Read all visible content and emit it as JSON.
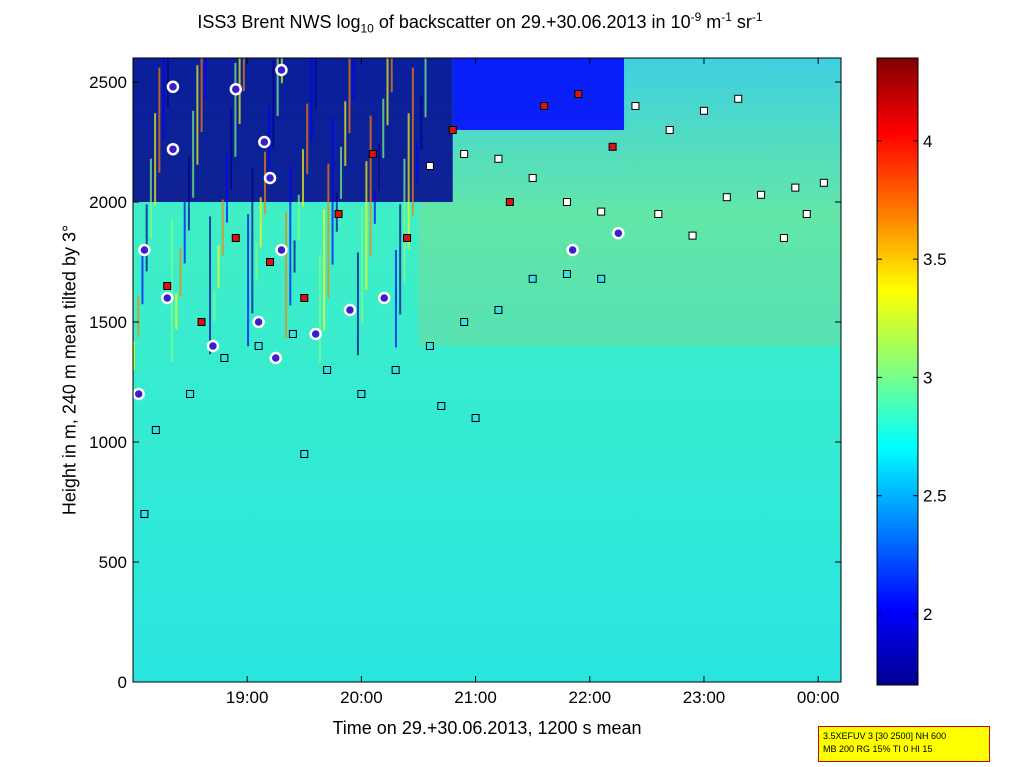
{
  "title": {
    "main": "ISS3 Brent NWS log",
    "sub1": "10",
    "mid": " of backscatter on 29.+30.06.2013 in 10",
    "sup1": "-9",
    "mid2": " m",
    "sup2": "-1",
    "mid3": " sr",
    "sup3": "-1"
  },
  "info_box": {
    "line1": "3.5XEFUV 3 [30 2500] NH 600",
    "line2": "MB 200 RG 15% TI 0 HI 15"
  },
  "colors": {
    "colormap": [
      "#00008f",
      "#0000ff",
      "#0080ff",
      "#00ffff",
      "#80ff80",
      "#ffff00",
      "#ff8000",
      "#ff0000",
      "#800000"
    ],
    "background_field": "#3fd6c8",
    "marker_red": "#dd1111",
    "marker_white": "#ffffff",
    "marker_cyan": "#38e0e8",
    "marker_purple": "#3a1ecc"
  },
  "chart_data": {
    "type": "heatmap",
    "title": "ISS3 Brent NWS log10 of backscatter on 29.+30.06.2013 in 10^-9 m^-1 sr^-1",
    "xlabel": "Time on 29.+30.06.2013, 1200 s mean",
    "ylabel": "Height in m, 240 m mean tilted by 3°",
    "x_unit": "hours",
    "xlim": [
      18.0,
      24.2
    ],
    "x_ticks": [
      {
        "value": 19,
        "label": "19:00"
      },
      {
        "value": 20,
        "label": "20:00"
      },
      {
        "value": 21,
        "label": "21:00"
      },
      {
        "value": 22,
        "label": "22:00"
      },
      {
        "value": 23,
        "label": "23:00"
      },
      {
        "value": 24,
        "label": "00:00"
      }
    ],
    "ylim": [
      0,
      2600
    ],
    "y_ticks": [
      0,
      500,
      1000,
      1500,
      2000,
      2500
    ],
    "colorbar": {
      "range": [
        1.7,
        4.35
      ],
      "ticks": [
        2,
        2.5,
        3,
        3.5,
        4
      ],
      "tick_labels": [
        "2",
        "2.5",
        "3",
        "3.5",
        "4"
      ]
    },
    "grid": false,
    "field_regions": [
      {
        "x": [
          18.0,
          20.8
        ],
        "y": [
          2000,
          2600
        ],
        "level": 1.85
      },
      {
        "x": [
          20.8,
          22.3
        ],
        "y": [
          2300,
          2600
        ],
        "level": 1.9
      },
      {
        "x": [
          18.0,
          20.5
        ],
        "y": [
          1400,
          2000
        ],
        "level": 2.6
      },
      {
        "x": [
          18.0,
          24.2
        ],
        "y": [
          0,
          1400
        ],
        "level": 2.75
      }
    ],
    "layer_series": [
      {
        "marker": "square-white",
        "points": [
          [
            20.6,
            2150
          ],
          [
            20.9,
            2200
          ],
          [
            21.2,
            2180
          ],
          [
            21.5,
            2100
          ],
          [
            21.8,
            2000
          ],
          [
            22.1,
            1960
          ],
          [
            22.4,
            2400
          ],
          [
            22.7,
            2300
          ],
          [
            23.0,
            2380
          ],
          [
            23.3,
            2430
          ],
          [
            22.6,
            1950
          ],
          [
            22.9,
            1860
          ],
          [
            23.2,
            2020
          ],
          [
            23.5,
            2030
          ],
          [
            23.8,
            2060
          ],
          [
            24.05,
            2080
          ],
          [
            23.9,
            1950
          ],
          [
            23.7,
            1850
          ]
        ]
      },
      {
        "marker": "square-cyan",
        "points": [
          [
            18.2,
            1050
          ],
          [
            18.5,
            1200
          ],
          [
            18.8,
            1350
          ],
          [
            19.1,
            1400
          ],
          [
            19.4,
            1450
          ],
          [
            19.7,
            1300
          ],
          [
            20.0,
            1200
          ],
          [
            20.3,
            1300
          ],
          [
            20.6,
            1400
          ],
          [
            20.9,
            1500
          ],
          [
            21.2,
            1550
          ],
          [
            21.5,
            1680
          ],
          [
            21.8,
            1700
          ],
          [
            22.1,
            1680
          ],
          [
            21.0,
            1100
          ],
          [
            20.7,
            1150
          ],
          [
            18.1,
            700
          ],
          [
            19.5,
            950
          ]
        ]
      },
      {
        "marker": "square-red",
        "points": [
          [
            18.3,
            1650
          ],
          [
            18.6,
            1500
          ],
          [
            18.9,
            1850
          ],
          [
            19.2,
            1750
          ],
          [
            19.5,
            1600
          ],
          [
            19.8,
            1950
          ],
          [
            20.1,
            2200
          ],
          [
            20.4,
            1850
          ],
          [
            20.8,
            2300
          ],
          [
            21.3,
            2000
          ],
          [
            21.6,
            2400
          ],
          [
            21.9,
            2450
          ],
          [
            22.2,
            2230
          ]
        ]
      },
      {
        "marker": "circle-white",
        "points": [
          [
            18.05,
            1200
          ],
          [
            18.1,
            1800
          ],
          [
            18.3,
            1600
          ],
          [
            18.35,
            2480
          ],
          [
            18.35,
            2220
          ],
          [
            18.7,
            1400
          ],
          [
            18.9,
            2470
          ],
          [
            19.1,
            1500
          ],
          [
            19.15,
            2250
          ],
          [
            19.2,
            2100
          ],
          [
            19.25,
            1350
          ],
          [
            19.3,
            2550
          ],
          [
            19.3,
            1800
          ],
          [
            19.6,
            1450
          ],
          [
            19.9,
            1550
          ],
          [
            20.2,
            1600
          ],
          [
            21.85,
            1800
          ],
          [
            22.25,
            1870
          ]
        ]
      }
    ]
  }
}
